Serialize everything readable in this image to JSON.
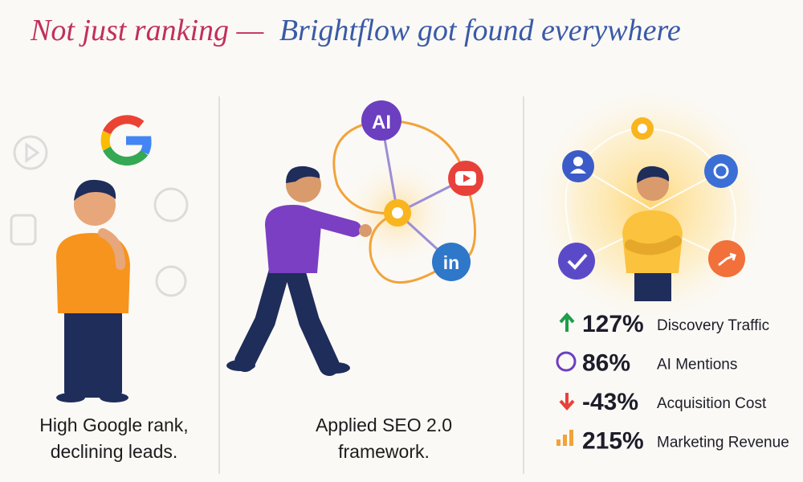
{
  "title": {
    "part1": "Not just ranking —",
    "part2": "Brightflow got found everywhere"
  },
  "panels": [
    {
      "caption": [
        "High Google rank,",
        "declining leads."
      ]
    },
    {
      "caption": [
        "Applied SEO 2.0",
        "framework."
      ],
      "nodes": [
        "AI",
        "in"
      ]
    },
    {
      "stats": [
        {
          "value": "127%",
          "label": "Discovery Traffic"
        },
        {
          "value": "86%",
          "label": "AI Mentions"
        },
        {
          "value": "-43%",
          "label": "Acquisition Cost"
        },
        {
          "value": "215%",
          "label": "Marketing Revenue"
        }
      ]
    }
  ]
}
